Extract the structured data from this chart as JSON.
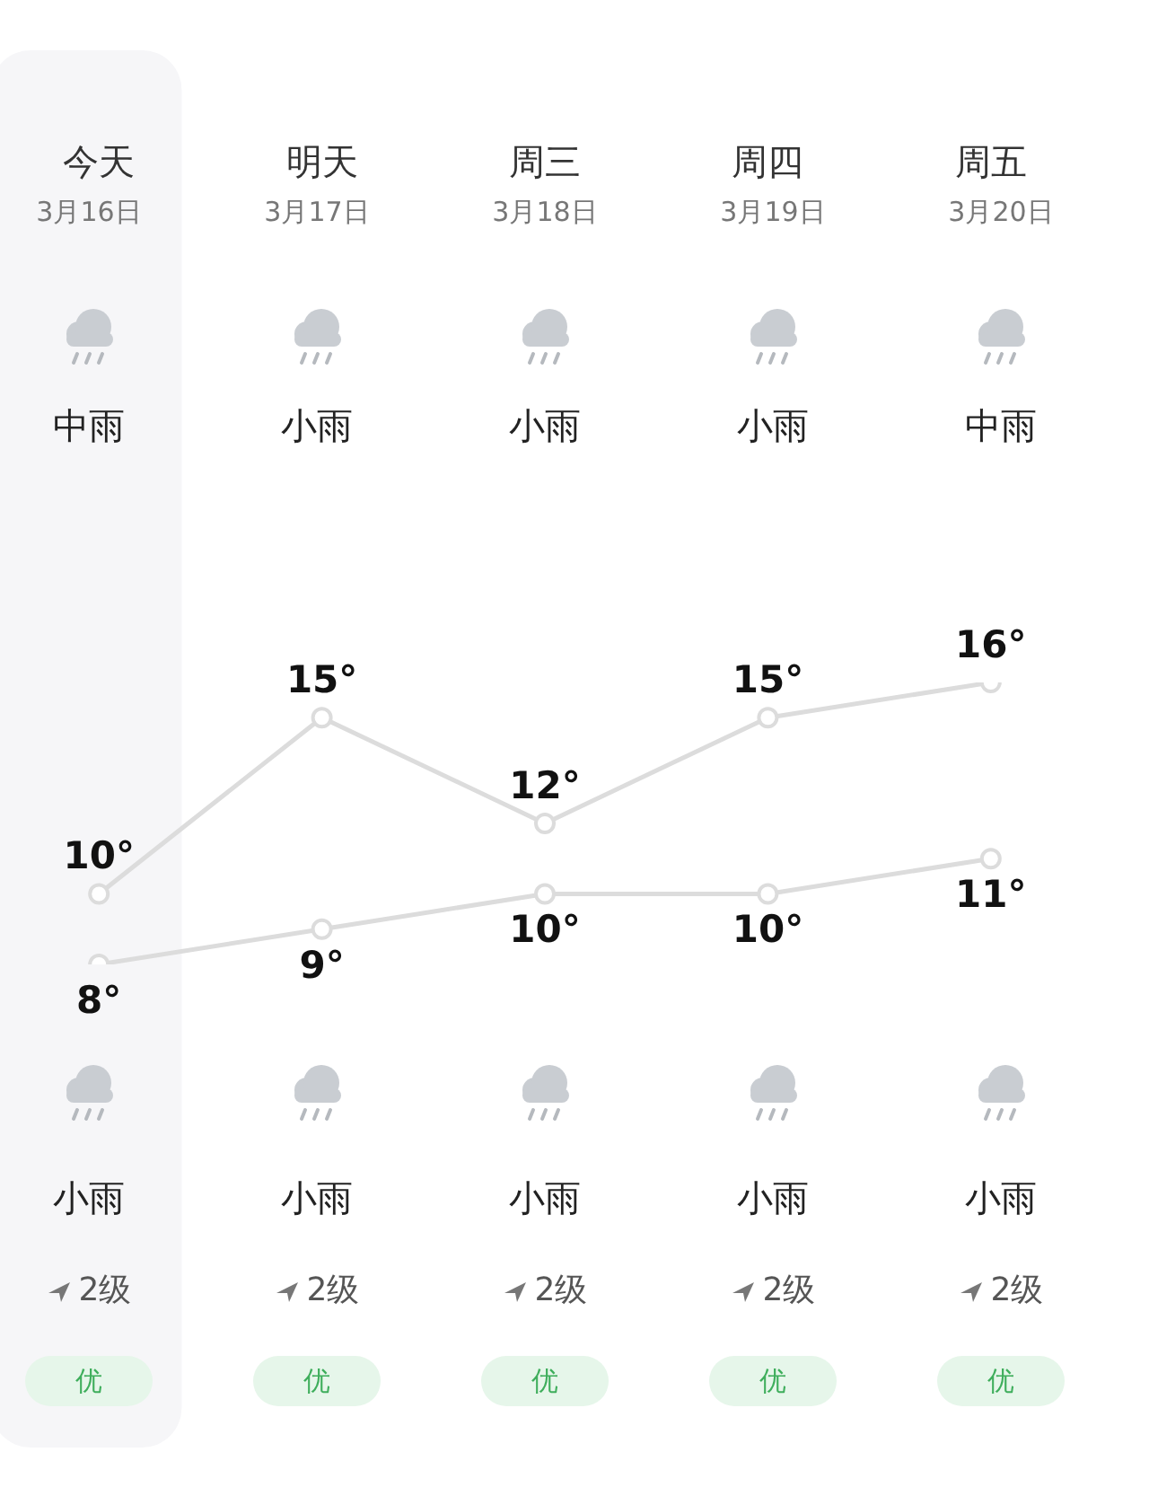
{
  "chart_data": {
    "type": "line",
    "categories": [
      "今天",
      "明天",
      "周三",
      "周四",
      "周五"
    ],
    "series": [
      {
        "color": "#dcdcdc",
        "values": [
          10,
          15,
          12,
          15,
          16
        ],
        "value_labels": [
          "10°",
          "15°",
          "12°",
          "15°",
          "16°"
        ]
      },
      {
        "color": "#dcdcdc",
        "values": [
          8,
          9,
          10,
          10,
          11
        ],
        "value_labels": [
          "8°",
          "9°",
          "10°",
          "10°",
          "11°"
        ]
      }
    ],
    "bands": [
      {
        "axis": "x",
        "from": "今天",
        "to": "今天",
        "color": "#f6f6f8"
      }
    ],
    "tick_labels": "x",
    "grid": false,
    "legend": false,
    "marker": "circle",
    "annotations": [
      "3月16日",
      "3月17日",
      "3月18日",
      "3月19日",
      "3月20日",
      "中雨",
      "小雨",
      "小雨",
      "小雨",
      "中雨",
      "小雨",
      "小雨",
      "小雨",
      "小雨",
      "小雨",
      "2级",
      "2级",
      "2级",
      "2级",
      "2级",
      "优",
      "优",
      "优",
      "优",
      "优"
    ]
  }
}
